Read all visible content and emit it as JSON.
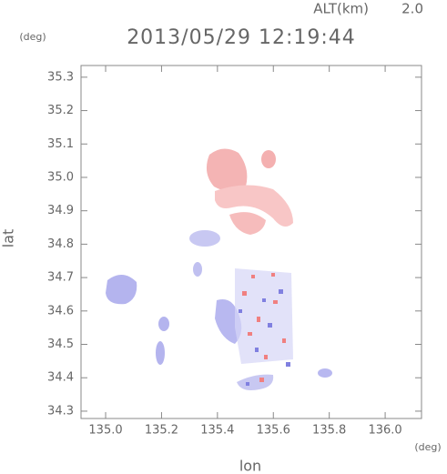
{
  "chart_data": {
    "type": "map",
    "title": "2013/05/29 12:19:44",
    "altitude_label": "ALT(km)",
    "altitude": "2.0",
    "x_label": "lon",
    "y_label": "lat",
    "x_unit": "(deg)",
    "y_unit": "(deg)",
    "xlim": [
      134.912,
      136.13
    ],
    "ylim": [
      34.278,
      35.335
    ],
    "xticks": [
      {
        "value": 135,
        "label": "135.0"
      },
      135.2,
      135.4,
      135.6,
      135.8,
      {
        "value": 136,
        "label": "136.0"
      }
    ],
    "yticks": [
      34.3,
      34.4,
      34.5,
      34.6,
      34.7,
      34.8,
      34.9,
      {
        "value": 35,
        "label": "35.0"
      },
      35.1,
      35.2,
      35.3
    ]
  }
}
